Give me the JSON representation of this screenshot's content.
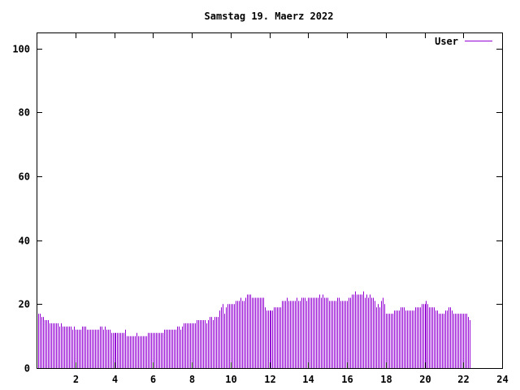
{
  "chart_data": {
    "type": "bar",
    "title": "Samstag 19. Maerz 2022",
    "xlabel": "",
    "ylabel": "",
    "xlim": [
      0,
      24
    ],
    "ylim": [
      0,
      105
    ],
    "xticks": [
      "2",
      "4",
      "6",
      "8",
      "10",
      "12",
      "14",
      "16",
      "18",
      "20",
      "22",
      "24"
    ],
    "yticks": [
      "0",
      "20",
      "40",
      "60",
      "80",
      "100"
    ],
    "legend_position": "top-right",
    "grid": false,
    "bar_color": "#9400d3",
    "samples_per_hour": 12,
    "series": [
      {
        "name": "User",
        "values": [
          18,
          17,
          17,
          16,
          16,
          15,
          15,
          15,
          14,
          14,
          14,
          14,
          14,
          14,
          13,
          14,
          13,
          13,
          13,
          13,
          13,
          13,
          12,
          13,
          12,
          12,
          12,
          12,
          13,
          13,
          13,
          12,
          12,
          12,
          12,
          12,
          12,
          12,
          12,
          13,
          13,
          12,
          13,
          12,
          12,
          12,
          11,
          11,
          11,
          11,
          11,
          11,
          11,
          11,
          11,
          12,
          10,
          10,
          10,
          10,
          10,
          10,
          11,
          10,
          10,
          10,
          10,
          10,
          10,
          11,
          11,
          11,
          11,
          11,
          11,
          11,
          11,
          11,
          11,
          12,
          12,
          12,
          12,
          12,
          12,
          12,
          12,
          13,
          13,
          12,
          13,
          14,
          14,
          14,
          14,
          14,
          14,
          14,
          14,
          15,
          15,
          15,
          15,
          15,
          15,
          14,
          15,
          16,
          16,
          15,
          16,
          16,
          16,
          18,
          19,
          20,
          17,
          19,
          20,
          20,
          20,
          20,
          20,
          21,
          21,
          21,
          22,
          21,
          21,
          22,
          23,
          23,
          23,
          22,
          22,
          22,
          22,
          22,
          22,
          22,
          22,
          19,
          18,
          18,
          18,
          18,
          18,
          19,
          19,
          19,
          19,
          19,
          21,
          21,
          21,
          22,
          21,
          21,
          21,
          21,
          21,
          22,
          21,
          21,
          22,
          22,
          22,
          21,
          22,
          22,
          22,
          22,
          22,
          22,
          22,
          23,
          22,
          23,
          22,
          22,
          22,
          21,
          21,
          21,
          21,
          21,
          22,
          22,
          21,
          21,
          21,
          21,
          21,
          22,
          22,
          23,
          23,
          24,
          23,
          23,
          23,
          23,
          24,
          22,
          23,
          22,
          23,
          22,
          22,
          21,
          19,
          20,
          19,
          21,
          22,
          20,
          17,
          17,
          17,
          17,
          17,
          18,
          18,
          18,
          18,
          19,
          19,
          19,
          18,
          18,
          18,
          18,
          18,
          18,
          19,
          19,
          19,
          19,
          20,
          20,
          20,
          21,
          20,
          19,
          19,
          19,
          19,
          18,
          18,
          17,
          17,
          17,
          17,
          18,
          18,
          19,
          19,
          18,
          17,
          17,
          17,
          17,
          17,
          17,
          17,
          17,
          17,
          16,
          15
        ]
      }
    ]
  }
}
